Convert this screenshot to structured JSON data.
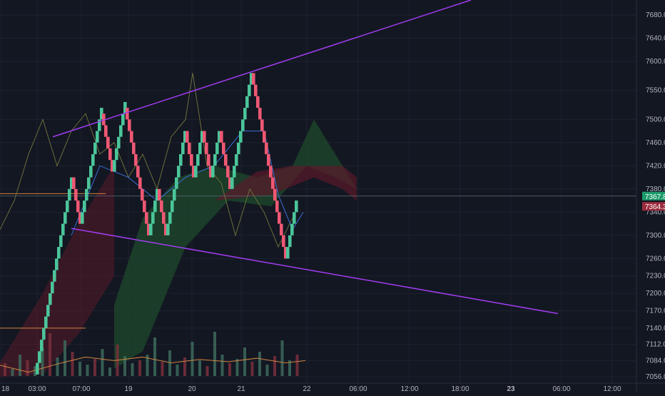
{
  "colors": {
    "background": "#131722",
    "grid": "#1e2230",
    "axis_text": "#b2b5be",
    "bull_brick": "#4bc59a",
    "bear_brick": "#ef5873",
    "trendline": "#a23cf0",
    "last_price_bg": "#1c9a6a",
    "prev_price_bg": "#9b2b3d",
    "cloud_bull": "#1d4a2b",
    "cloud_bear": "#5a1a2a",
    "ma_line": "#6b6f3a",
    "orange_line": "#d2853f",
    "blue_line": "#3b6fd8",
    "volume_green": "#3d6a5a",
    "volume_red": "#7a2f3c"
  },
  "chart_data": {
    "type": "renko",
    "ylim": [
      7045,
      7706
    ],
    "y_ticks": [
      7680.0,
      7640.0,
      7600.0,
      7550.0,
      7500.0,
      7460.0,
      7420.0,
      7380.0,
      7340.0,
      7300.0,
      7260.0,
      7230.0,
      7200.0,
      7170.0,
      7140.0,
      7112.0,
      7084.0,
      7056.0
    ],
    "x_tick_labels": [
      "18",
      "03:00",
      "07:00",
      "19",
      "20",
      "21",
      "22",
      "06:00",
      "12:00",
      "18:00",
      "23",
      "06:00",
      "12:00"
    ],
    "bold_x_labels": [
      "23"
    ],
    "last_price": "7367.8",
    "prev_price": "7364.3",
    "brick_size": 20,
    "renko_path": [
      7060,
      7400,
      7320,
      7510,
      7410,
      7520,
      7300,
      7380,
      7300,
      7480,
      7400,
      7480,
      7400,
      7480,
      7380,
      7580,
      7260,
      7360
    ],
    "trendlines": [
      {
        "from": [
          "03:00",
          7470
        ],
        "to": [
          "23",
          7720
        ]
      },
      {
        "from": [
          "07:00",
          7310
        ],
        "to": [
          "06:00 (23)",
          7165
        ]
      }
    ],
    "horizontal_lines": [
      7370,
      7140
    ]
  }
}
